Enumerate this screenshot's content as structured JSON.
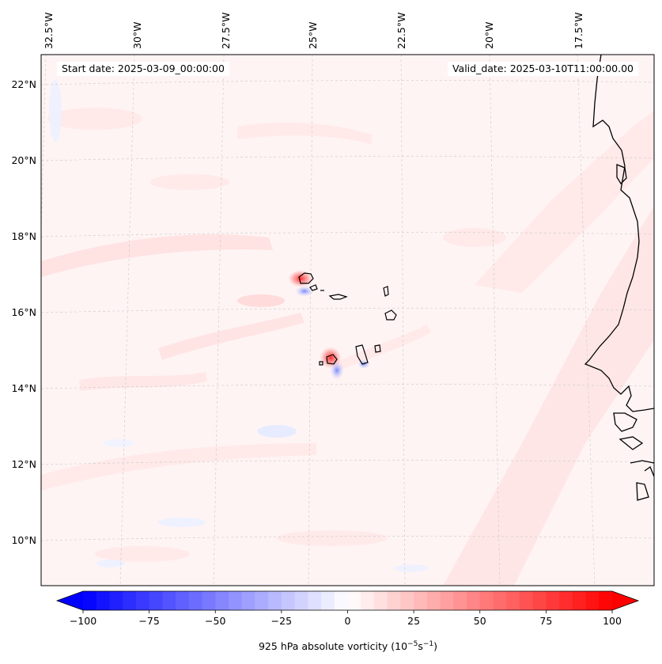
{
  "map": {
    "start_date": "Start date: 2025-03-09_00:00:00",
    "valid_date": "Valid_date: 2025-03-10T11:00:00.00",
    "lon_labels": [
      "32.5°W",
      "30°W",
      "27.5°W",
      "25°W",
      "22.5°W",
      "20°W",
      "17.5°W"
    ],
    "lat_labels": [
      "22°N",
      "20°N",
      "18°N",
      "16°N",
      "14°N",
      "12°N",
      "10°N"
    ],
    "field": "925 hPa absolute vorticity",
    "colors": {
      "negative": "#0000ff",
      "neutral": "#ffffff",
      "positive": "#ff0000",
      "background_fill": "#fff4f4",
      "coastline": "#000000",
      "gridline": "#c8c8c8"
    }
  },
  "colorbar": {
    "ticks": [
      "−100",
      "−75",
      "−50",
      "−25",
      "0",
      "25",
      "50",
      "75",
      "100"
    ],
    "label_main": "925 hPa absolute vorticity (10",
    "label_exp1": "−5",
    "label_mid": "s",
    "label_exp2": "−1",
    "label_end": ")",
    "range": [
      -100,
      100
    ],
    "extend": "both"
  }
}
